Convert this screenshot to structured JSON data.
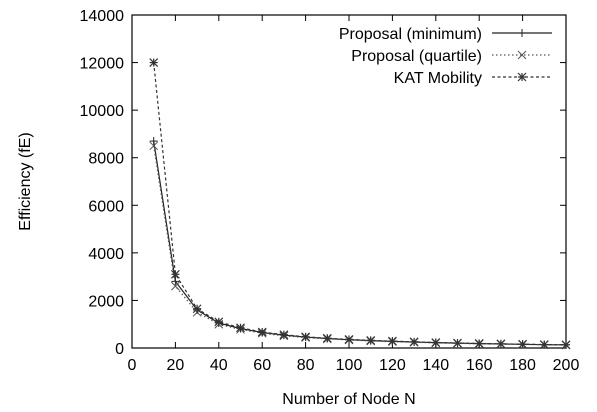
{
  "chart_data": {
    "type": "line",
    "title": "",
    "xlabel": "Number of Node N",
    "ylabel": "Efficiency (fE)",
    "xlim": [
      0,
      200
    ],
    "ylim": [
      0,
      14000
    ],
    "xticks": [
      0,
      20,
      40,
      60,
      80,
      100,
      120,
      140,
      160,
      180,
      200
    ],
    "yticks": [
      0,
      2000,
      4000,
      6000,
      8000,
      10000,
      12000,
      14000
    ],
    "x_tick_labels": [
      "0",
      "20",
      "40",
      "60",
      "80",
      "100",
      "120",
      "140",
      "160",
      "180",
      "200"
    ],
    "y_tick_labels": [
      "0",
      "2000",
      "4000",
      "6000",
      "8000",
      "10000",
      "12000",
      "14000"
    ],
    "grid": false,
    "legend_position": "top-right",
    "x": [
      10,
      20,
      30,
      40,
      50,
      60,
      70,
      80,
      90,
      100,
      110,
      120,
      130,
      140,
      150,
      160,
      170,
      180,
      190,
      200
    ],
    "series": [
      {
        "name": "Proposal (minimum)",
        "marker": "plus",
        "dash": "solid",
        "values": [
          8700,
          2800,
          1600,
          1050,
          820,
          650,
          540,
          460,
          400,
          350,
          310,
          280,
          250,
          225,
          205,
          185,
          170,
          155,
          140,
          130
        ]
      },
      {
        "name": "Proposal (quartile)",
        "marker": "x",
        "dash": "dotted",
        "values": [
          8500,
          2600,
          1500,
          1000,
          780,
          620,
          510,
          440,
          380,
          335,
          295,
          265,
          240,
          215,
          195,
          175,
          160,
          148,
          135,
          125
        ]
      },
      {
        "name": "KAT Mobility",
        "marker": "star",
        "dash": "dashed",
        "values": [
          12000,
          3100,
          1650,
          1100,
          850,
          670,
          560,
          470,
          410,
          360,
          320,
          290,
          260,
          230,
          210,
          190,
          175,
          160,
          145,
          135
        ]
      }
    ]
  }
}
